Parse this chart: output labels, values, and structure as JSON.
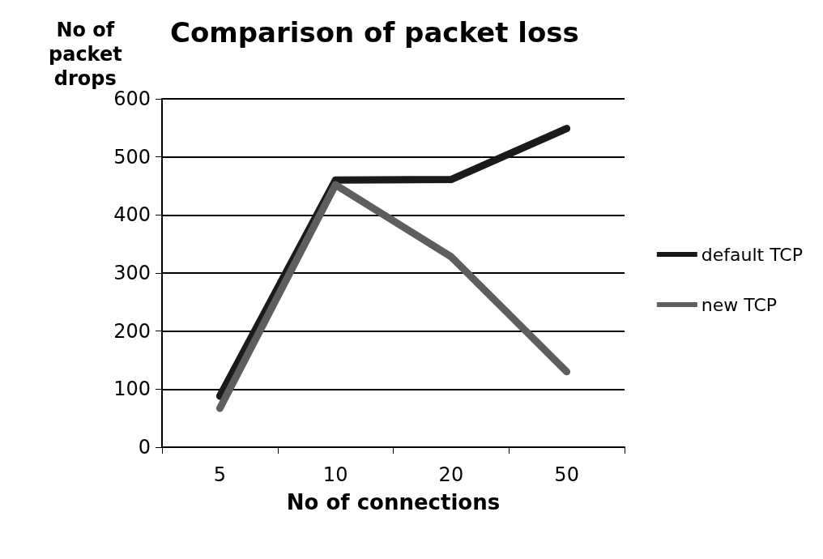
{
  "chart_data": {
    "type": "line",
    "title": "Comparison of packet loss",
    "xlabel": "No of connections",
    "ylabel": "No of packet drops",
    "categories": [
      "5",
      "10",
      "20",
      "50"
    ],
    "series": [
      {
        "name": "default TCP",
        "color": "#1a1a1a",
        "values": [
          88,
          460,
          461,
          549
        ]
      },
      {
        "name": "new TCP",
        "color": "#5e5e5e",
        "values": [
          67,
          452,
          328,
          130
        ]
      }
    ],
    "ylim": [
      0,
      600
    ],
    "yticks": [
      0,
      100,
      200,
      300,
      400,
      500,
      600
    ],
    "grid": "y",
    "legend": "right",
    "marker": "none",
    "line_style": "solid"
  }
}
